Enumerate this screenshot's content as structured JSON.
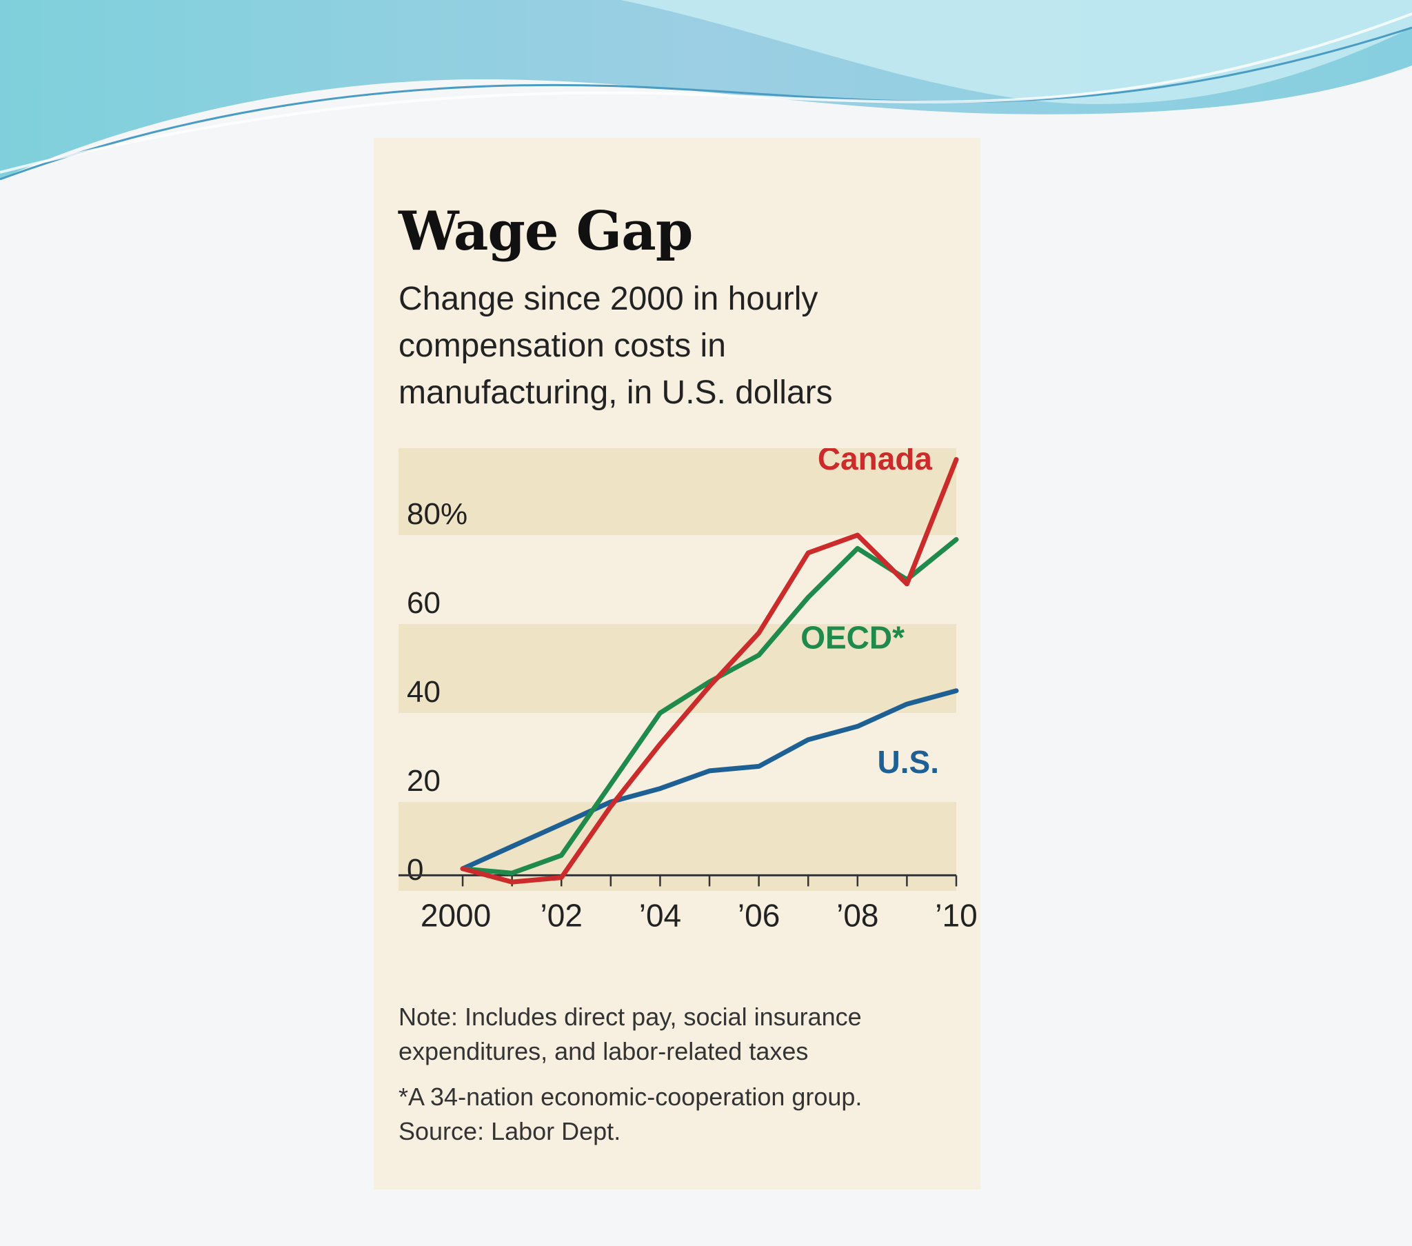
{
  "chart_data": {
    "type": "line",
    "title": "Wage Gap",
    "subtitle": "Change since 2000 in hourly compensation costs in manufacturing, in U.S. dollars",
    "x": [
      2000,
      2001,
      2002,
      2003,
      2004,
      2005,
      2006,
      2007,
      2008,
      2009,
      2010
    ],
    "x_tick_values": [
      2000,
      2002,
      2004,
      2006,
      2008,
      2010
    ],
    "x_tick_labels": [
      "2000",
      "’02",
      "’04",
      "’06",
      "’08",
      "’10"
    ],
    "y_ticks": [
      0,
      20,
      40,
      60,
      80
    ],
    "y_tick_labels": [
      "0",
      "20",
      "40",
      "60",
      "80%"
    ],
    "ylim": [
      -6,
      100
    ],
    "xlim": [
      1998.7,
      2010
    ],
    "series": [
      {
        "name": "Canada",
        "color": "#cc2b2b",
        "values": [
          0,
          -3,
          -2,
          14,
          28,
          41,
          53,
          71,
          75,
          64,
          92
        ]
      },
      {
        "name": "OECD*",
        "color": "#1f8a4c",
        "values": [
          0,
          -1,
          3,
          19,
          35,
          42,
          48,
          61,
          72,
          65,
          74
        ]
      },
      {
        "name": "U.S.",
        "color": "#1f6094",
        "values": [
          0,
          5,
          10,
          15,
          18,
          22,
          23,
          29,
          32,
          37,
          40
        ]
      }
    ],
    "grid": "alternating horizontal bands",
    "legend": "inline labels at line ends"
  },
  "notes": {
    "note": "Note: Includes direct pay, social insurance expenditures, and labor-related taxes",
    "footnote": "*A 34-nation economic-cooperation group.",
    "source": "Source: Labor Dept."
  }
}
